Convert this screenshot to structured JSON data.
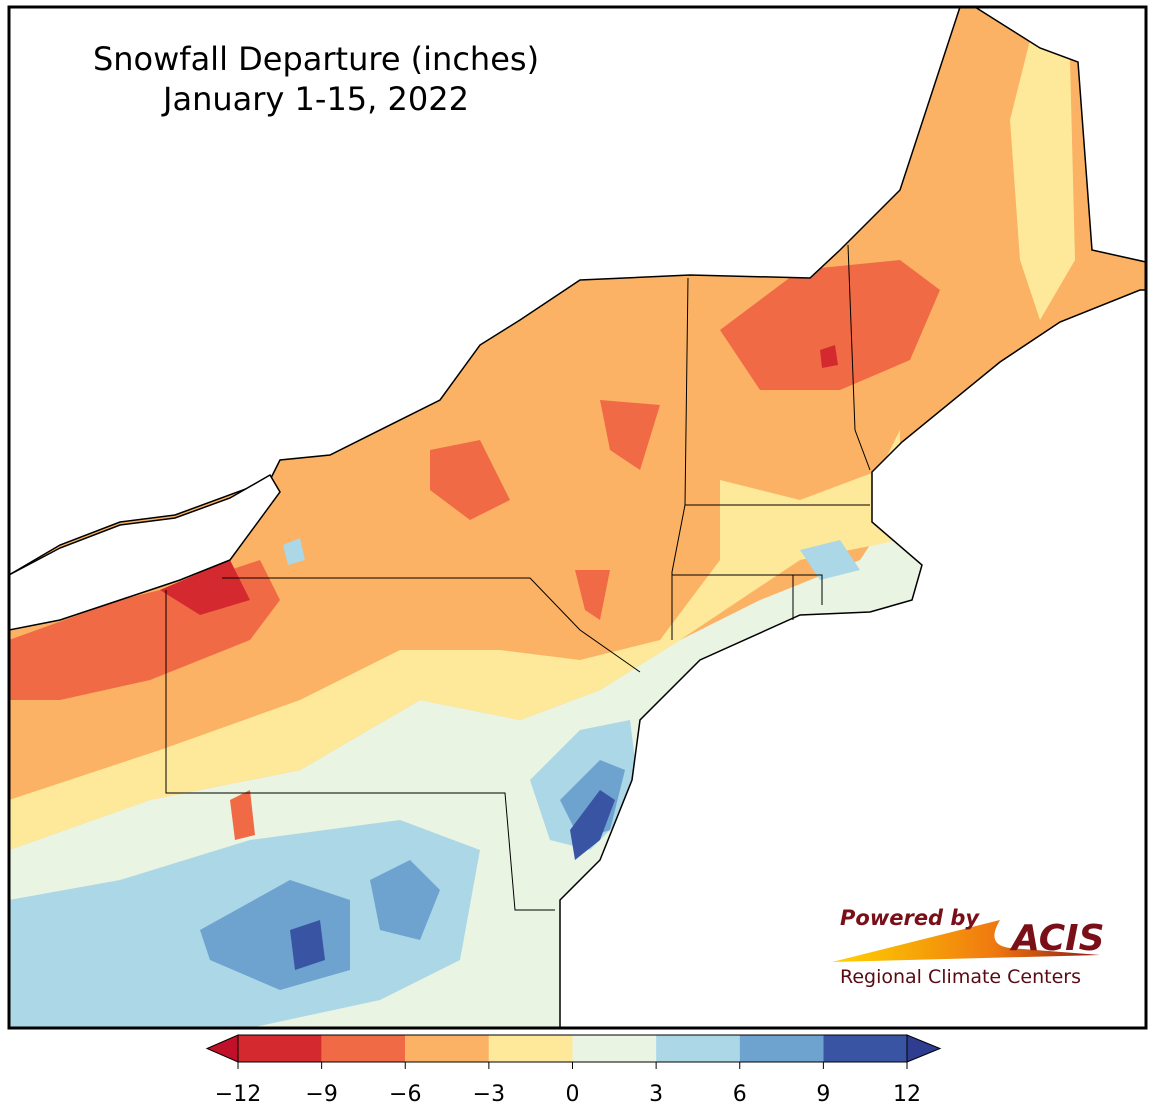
{
  "title": [
    "Snowfall Departure (inches)",
    "January 1-15, 2022"
  ],
  "colorbar": {
    "ticks": [
      {
        "value": -12,
        "label": "−12"
      },
      {
        "value": -9,
        "label": "−9"
      },
      {
        "value": -6,
        "label": "−6"
      },
      {
        "value": -3,
        "label": "−3"
      },
      0,
      3,
      6,
      9,
      12
    ],
    "colors": [
      "#d42a2f",
      "#ef6a45",
      "#fbb264",
      "#fee99a",
      "#eaf4e2",
      "#abd7e7",
      "#6ea2cf",
      "#3a54a4"
    ],
    "under_color": "#c0102a",
    "over_color": "#2e3d8f"
  },
  "logo": {
    "tagline": "Powered by",
    "name": "ACIS",
    "caption": "Regional Climate Centers"
  }
}
